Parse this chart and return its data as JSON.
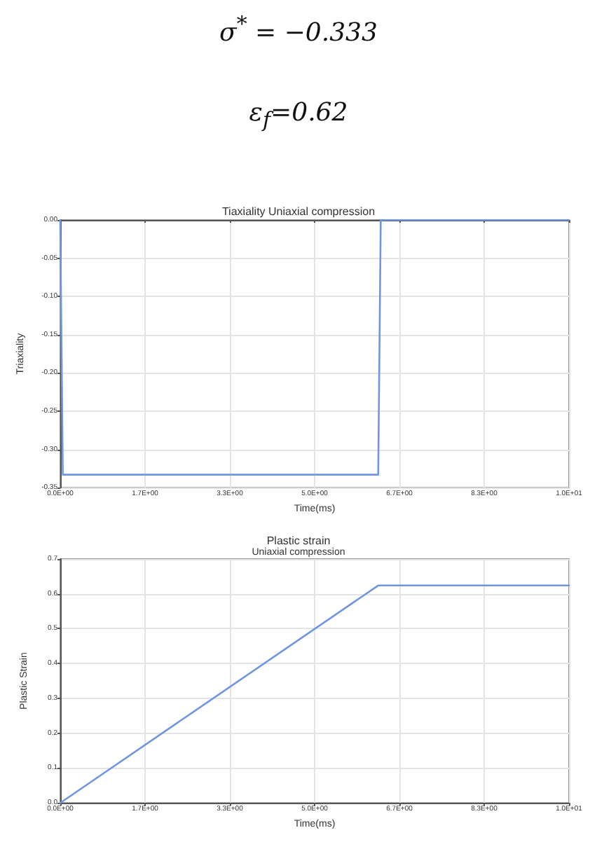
{
  "chart_data": [
    {
      "type": "line",
      "title": "Tiaxiality Uniaxial compression",
      "xlabel": "Time(ms)",
      "ylabel": "Triaxiality",
      "annotations": [
        "σ$^{*}$ = −0.333",
        "ε$_{f}$=0.62"
      ],
      "series": [
        {
          "color": "#7096e0",
          "x": [
            0,
            0.05,
            6.25,
            6.3,
            10
          ],
          "values": [
            0,
            -0.333,
            -0.333,
            0,
            0
          ]
        }
      ],
      "xlim": [
        0,
        10
      ],
      "xticks": [
        {
          "value": 0,
          "label": "0.0E+00"
        },
        {
          "value": 1.667,
          "label": "1.7E+00"
        },
        {
          "value": 3.333,
          "label": "3.3E+00"
        },
        {
          "value": 5,
          "label": "5.0E+00"
        },
        {
          "value": 6.667,
          "label": "6.7E+00"
        },
        {
          "value": 8.333,
          "label": "8.3E+00"
        },
        {
          "value": 10,
          "label": "1.0E+01"
        }
      ],
      "ylim": [
        -0.35,
        0
      ],
      "yticks": [
        {
          "value": -0.35,
          "label": "-0.35"
        },
        {
          "value": -0.3,
          "label": "-0.30"
        },
        {
          "value": -0.25,
          "label": "-0.25"
        },
        {
          "value": -0.2,
          "label": "-0.20"
        },
        {
          "value": -0.15,
          "label": "-0.15"
        },
        {
          "value": -0.1,
          "label": "-0.10"
        },
        {
          "value": -0.05,
          "label": "-0.05"
        },
        {
          "value": 0,
          "label": "0.00"
        }
      ],
      "grid": true,
      "marker": "none",
      "line_style": "solid"
    },
    {
      "type": "line",
      "title": "Plastic strain",
      "subtitle": "Uniaxial compression",
      "xlabel": "Time(ms)",
      "ylabel": "Plastic Strain",
      "series": [
        {
          "color": "#7096e0",
          "x": [
            0,
            6.25,
            10
          ],
          "values": [
            0,
            0.624,
            0.624
          ]
        }
      ],
      "xlim": [
        0,
        10
      ],
      "xticks": [
        {
          "value": 0,
          "label": "0.0E+00"
        },
        {
          "value": 1.667,
          "label": "1.7E+00"
        },
        {
          "value": 3.333,
          "label": "3.3E+00"
        },
        {
          "value": 5,
          "label": "5.0E+00"
        },
        {
          "value": 6.667,
          "label": "6.7E+00"
        },
        {
          "value": 8.333,
          "label": "8.3E+00"
        },
        {
          "value": 10,
          "label": "1.0E+01"
        }
      ],
      "ylim": [
        0,
        0.7
      ],
      "yticks": [
        {
          "value": 0,
          "label": "0.0"
        },
        {
          "value": 0.1,
          "label": "0.1"
        },
        {
          "value": 0.2,
          "label": "0.2"
        },
        {
          "value": 0.3,
          "label": "0.3"
        },
        {
          "value": 0.4,
          "label": "0.4"
        },
        {
          "value": 0.5,
          "label": "0.5"
        },
        {
          "value": 0.6,
          "label": "0.6"
        },
        {
          "value": 0.7,
          "label": "0.7"
        }
      ],
      "grid": true,
      "marker": "none",
      "line_style": "solid"
    }
  ]
}
